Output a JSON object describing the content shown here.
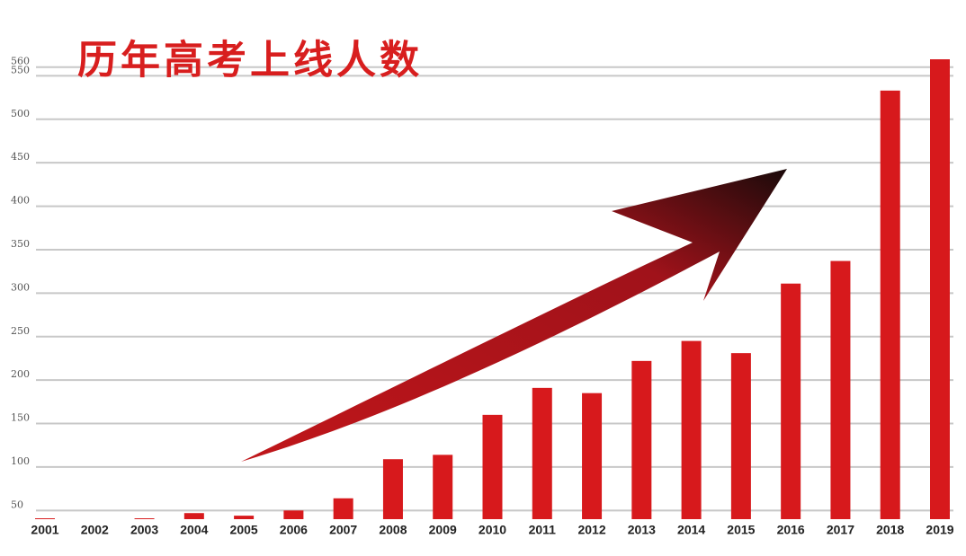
{
  "chart_data": {
    "type": "bar",
    "title": "历年高考上线人数",
    "categories": [
      "2001",
      "2002",
      "2003",
      "2004",
      "2005",
      "2006",
      "2007",
      "2008",
      "2009",
      "2010",
      "2011",
      "2012",
      "2013",
      "2014",
      "2015",
      "2016",
      "2017",
      "2018",
      "2019"
    ],
    "values": [
      41,
      40,
      41,
      47,
      44,
      50,
      64,
      109,
      114,
      160,
      191,
      185,
      222,
      245,
      231,
      311,
      337,
      533,
      569
    ],
    "color": "#d7191c",
    "ylim": [
      40,
      600
    ],
    "yticks": [
      50,
      100,
      150,
      200,
      250,
      300,
      350,
      400,
      450,
      500,
      550,
      560
    ],
    "grid": true
  }
}
